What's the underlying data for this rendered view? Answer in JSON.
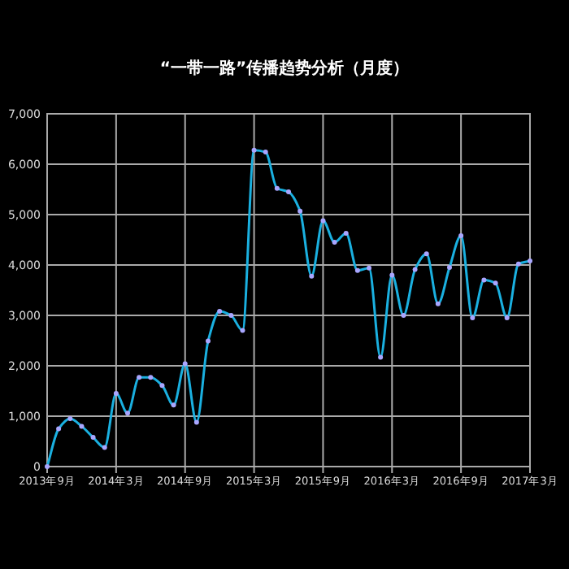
{
  "chart_data": {
    "type": "line",
    "title": "“一带一路”传播趋势分析（月度）",
    "x": [
      "2013-09",
      "2013-10",
      "2013-11",
      "2013-12",
      "2014-01",
      "2014-02",
      "2014-03",
      "2014-04",
      "2014-05",
      "2014-06",
      "2014-07",
      "2014-08",
      "2014-09",
      "2014-10",
      "2014-11",
      "2014-12",
      "2015-01",
      "2015-02",
      "2015-03",
      "2015-04",
      "2015-05",
      "2015-06",
      "2015-07",
      "2015-08",
      "2015-09",
      "2015-10",
      "2015-11",
      "2015-12",
      "2016-01",
      "2016-02",
      "2016-03",
      "2016-04",
      "2016-05",
      "2016-06",
      "2016-07",
      "2016-08",
      "2016-09",
      "2016-10",
      "2016-11",
      "2016-12",
      "2017-01",
      "2017-02",
      "2017-03"
    ],
    "series": [
      {
        "color": "#1ab0e0",
        "values": [
          0,
          750,
          950,
          800,
          580,
          380,
          1450,
          1060,
          1770,
          1770,
          1610,
          1220,
          2040,
          880,
          2490,
          3080,
          3000,
          2700,
          6280,
          6240,
          5520,
          5450,
          5070,
          3780,
          4880,
          4450,
          4630,
          3890,
          3940,
          2170,
          3800,
          3000,
          3910,
          4220,
          3230,
          3950,
          4580,
          2950,
          3700,
          3640,
          2950,
          4020,
          4080
        ]
      }
    ],
    "xlim": [
      "2013-09",
      "2017-03"
    ],
    "xticks": [
      {
        "value": "2013-09",
        "label": "2013年9月"
      },
      {
        "value": "2014-03",
        "label": "2014年3月"
      },
      {
        "value": "2014-09",
        "label": "2014年9月"
      },
      {
        "value": "2015-03",
        "label": "2015年3月"
      },
      {
        "value": "2015-09",
        "label": "2015年9月"
      },
      {
        "value": "2016-03",
        "label": "2016年3月"
      },
      {
        "value": "2016-09",
        "label": "2016年9月"
      },
      {
        "value": "2017-03",
        "label": "2017年3月"
      }
    ],
    "ylim": [
      0,
      7000
    ],
    "yticks": [
      0,
      {
        "value": 1000,
        "label": "1,000"
      },
      {
        "value": 2000,
        "label": "2,000"
      },
      {
        "value": 3000,
        "label": "3,000"
      },
      {
        "value": 4000,
        "label": "4,000"
      },
      {
        "value": 5000,
        "label": "5,000"
      },
      {
        "value": 6000,
        "label": "6,000"
      },
      {
        "value": 7000,
        "label": "7,000"
      }
    ],
    "grid": true,
    "marker": "circle",
    "line_style": "solid"
  }
}
